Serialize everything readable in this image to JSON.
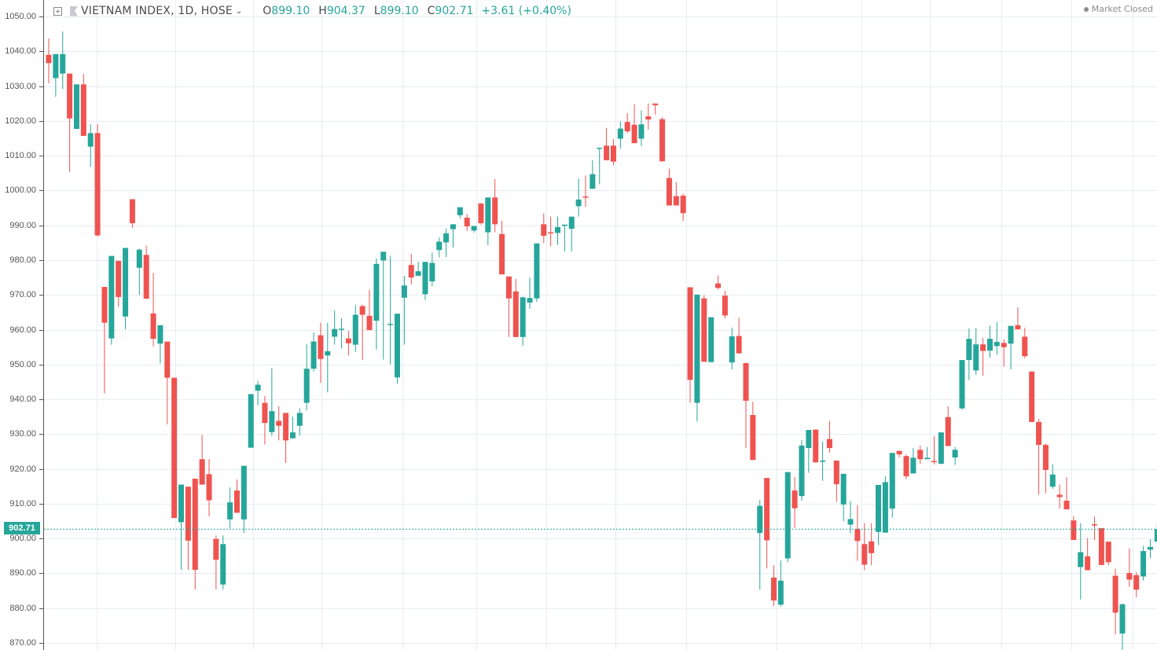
{
  "header": {
    "symbol": "VIETNAM INDEX, 1D, HOSE",
    "open_label": "O",
    "open": "899.10",
    "high_label": "H",
    "high": "904.37",
    "low_label": "L",
    "low": "899.10",
    "close_label": "C",
    "close": "902.71",
    "change": "+3.61 (+0.40%)"
  },
  "status": {
    "text": "Market Closed"
  },
  "last_price_tag": "902.71",
  "colors": {
    "up": "#26a69a",
    "down": "#ef5350",
    "grid": "#e6edf3",
    "axis": "#555555",
    "last_price_line": "#26a69a"
  },
  "chart_data": {
    "type": "candlestick",
    "title": "VIETNAM INDEX, 1D, HOSE",
    "xlabel": "",
    "ylabel": "",
    "ylim": [
      868,
      1052
    ],
    "yticks": [
      "1050.00",
      "1040.00",
      "1030.00",
      "1020.00",
      "1010.00",
      "1000.00",
      "990.00",
      "980.00",
      "970.00",
      "960.00",
      "950.00",
      "940.00",
      "930.00",
      "920.00",
      "910.00",
      "900.00",
      "890.00",
      "880.00",
      "870.00"
    ],
    "grid": true,
    "last_price": 902.71,
    "candles": [
      {
        "o": 1039.0,
        "h": 1043.7,
        "l": 1030.8,
        "c": 1036.6
      },
      {
        "o": 1032.3,
        "h": 1039.2,
        "l": 1026.9,
        "c": 1039.2
      },
      {
        "o": 1033.6,
        "h": 1045.7,
        "l": 1029.2,
        "c": 1039.2
      },
      {
        "o": 1033.6,
        "h": 1033.6,
        "l": 1005.3,
        "c": 1020.7
      },
      {
        "o": 1017.7,
        "h": 1030.5,
        "l": 1017.7,
        "c": 1030.5
      },
      {
        "o": 1030.5,
        "h": 1033.5,
        "l": 1015.7,
        "c": 1015.7
      },
      {
        "o": 1012.6,
        "h": 1019.0,
        "l": 1006.8,
        "c": 1016.5
      },
      {
        "o": 1016.5,
        "h": 1019.0,
        "l": 986.8,
        "c": 987.1
      },
      {
        "o": 972.3,
        "h": 972.3,
        "l": 941.7,
        "c": 962.0
      },
      {
        "o": 957.5,
        "h": 981.2,
        "l": 955.7,
        "c": 981.2
      },
      {
        "o": 979.8,
        "h": 979.8,
        "l": 966.6,
        "c": 969.4
      },
      {
        "o": 963.8,
        "h": 983.5,
        "l": 960.1,
        "c": 983.5
      },
      {
        "o": 997.5,
        "h": 997.5,
        "l": 989.3,
        "c": 990.6
      },
      {
        "o": 977.8,
        "h": 983.3,
        "l": 970.0,
        "c": 983.0
      },
      {
        "o": 981.5,
        "h": 984.2,
        "l": 968.9,
        "c": 968.9
      },
      {
        "o": 964.7,
        "h": 976.3,
        "l": 955.2,
        "c": 957.4
      },
      {
        "o": 956.0,
        "h": 961.3,
        "l": 950.3,
        "c": 961.3
      },
      {
        "o": 956.6,
        "h": 956.6,
        "l": 932.8,
        "c": 946.2
      },
      {
        "o": 946.2,
        "h": 946.2,
        "l": 906.0,
        "c": 905.9
      },
      {
        "o": 904.7,
        "h": 915.5,
        "l": 891.0,
        "c": 915.5
      },
      {
        "o": 914.9,
        "h": 914.9,
        "l": 891.0,
        "c": 899.4
      },
      {
        "o": 917.2,
        "h": 917.2,
        "l": 885.4,
        "c": 891.0
      },
      {
        "o": 922.8,
        "h": 929.8,
        "l": 916.3,
        "c": 915.5
      },
      {
        "o": 918.5,
        "h": 922.8,
        "l": 906.4,
        "c": 911.0
      },
      {
        "o": 899.9,
        "h": 900.9,
        "l": 885.4,
        "c": 893.9
      },
      {
        "o": 886.8,
        "h": 900.9,
        "l": 885.4,
        "c": 898.4
      },
      {
        "o": 905.5,
        "h": 914.7,
        "l": 902.9,
        "c": 910.4
      },
      {
        "o": 913.8,
        "h": 917.0,
        "l": 908.9,
        "c": 907.4
      },
      {
        "o": 905.5,
        "h": 905.5,
        "l": 901.6,
        "c": 920.9
      },
      {
        "o": 926.1,
        "h": 941.5,
        "l": 926.1,
        "c": 941.5
      },
      {
        "o": 942.5,
        "h": 945.3,
        "l": 938.3,
        "c": 944.2
      },
      {
        "o": 939.0,
        "h": 941.0,
        "l": 927.0,
        "c": 933.2
      },
      {
        "o": 930.6,
        "h": 949.0,
        "l": 929.5,
        "c": 936.6
      },
      {
        "o": 933.8,
        "h": 938.0,
        "l": 928.2,
        "c": 932.4
      },
      {
        "o": 936.1,
        "h": 936.1,
        "l": 921.7,
        "c": 928.2
      },
      {
        "o": 928.8,
        "h": 935.0,
        "l": 929.2,
        "c": 930.5
      },
      {
        "o": 932.4,
        "h": 937.4,
        "l": 929.6,
        "c": 936.1
      },
      {
        "o": 939.0,
        "h": 955.8,
        "l": 936.8,
        "c": 948.8
      },
      {
        "o": 948.8,
        "h": 959.2,
        "l": 948.0,
        "c": 956.6
      },
      {
        "o": 958.4,
        "h": 962.0,
        "l": 944.7,
        "c": 951.6
      },
      {
        "o": 952.6,
        "h": 962.0,
        "l": 942.0,
        "c": 953.8
      },
      {
        "o": 958.0,
        "h": 965.5,
        "l": 955.7,
        "c": 960.2
      },
      {
        "o": 960.2,
        "h": 963.3,
        "l": 954.6,
        "c": 960.3
      },
      {
        "o": 957.5,
        "h": 959.6,
        "l": 952.6,
        "c": 956.1
      },
      {
        "o": 955.7,
        "h": 967.2,
        "l": 953.6,
        "c": 964.3
      },
      {
        "o": 966.8,
        "h": 967.2,
        "l": 951.3,
        "c": 964.3
      },
      {
        "o": 964.0,
        "h": 971.5,
        "l": 964.0,
        "c": 959.9
      },
      {
        "o": 962.6,
        "h": 980.5,
        "l": 954.3,
        "c": 978.9
      },
      {
        "o": 979.9,
        "h": 980.8,
        "l": 951.4,
        "c": 982.4
      },
      {
        "o": 961.7,
        "h": 981.2,
        "l": 950.0,
        "c": 961.7
      },
      {
        "o": 946.3,
        "h": 964.6,
        "l": 944.5,
        "c": 964.6
      },
      {
        "o": 969.2,
        "h": 975.5,
        "l": 955.7,
        "c": 972.7
      },
      {
        "o": 978.6,
        "h": 981.8,
        "l": 973.0,
        "c": 975.0
      },
      {
        "o": 975.5,
        "h": 979.5,
        "l": 975.5,
        "c": 976.8
      },
      {
        "o": 970.2,
        "h": 970.2,
        "l": 968.6,
        "c": 979.5
      },
      {
        "o": 973.9,
        "h": 982.2,
        "l": 972.5,
        "c": 979.2
      },
      {
        "o": 982.9,
        "h": 986.5,
        "l": 980.8,
        "c": 985.3
      },
      {
        "o": 985.1,
        "h": 989.1,
        "l": 980.9,
        "c": 987.7
      },
      {
        "o": 988.9,
        "h": 990.3,
        "l": 983.6,
        "c": 990.3
      },
      {
        "o": 992.9,
        "h": 994.8,
        "l": 992.0,
        "c": 995.2
      },
      {
        "o": 992.2,
        "h": 993.2,
        "l": 988.4,
        "c": 989.7
      },
      {
        "o": 988.5,
        "h": 988.5,
        "l": 987.9,
        "c": 989.8
      },
      {
        "o": 996.3,
        "h": 996.3,
        "l": 990.2,
        "c": 990.6
      },
      {
        "o": 988.0,
        "h": 996.1,
        "l": 984.3,
        "c": 998.0
      },
      {
        "o": 998.0,
        "h": 1003.3,
        "l": 988.0,
        "c": 990.3
      },
      {
        "o": 987.5,
        "h": 991.3,
        "l": 975.9,
        "c": 975.9
      },
      {
        "o": 975.3,
        "h": 969.0,
        "l": 957.9,
        "c": 969.0
      },
      {
        "o": 971.0,
        "h": 974.6,
        "l": 958.0,
        "c": 957.9
      },
      {
        "o": 957.9,
        "h": 969.5,
        "l": 955.4,
        "c": 969.3
      },
      {
        "o": 967.8,
        "h": 975.0,
        "l": 966.0,
        "c": 969.1
      },
      {
        "o": 969.0,
        "h": 969.0,
        "l": 968.0,
        "c": 984.8
      },
      {
        "o": 990.3,
        "h": 993.5,
        "l": 984.9,
        "c": 987.0
      },
      {
        "o": 988.0,
        "h": 992.5,
        "l": 984.0,
        "c": 987.9
      },
      {
        "o": 987.8,
        "h": 992.5,
        "l": 984.4,
        "c": 989.5
      },
      {
        "o": 990.2,
        "h": 990.2,
        "l": 982.5,
        "c": 990.2
      },
      {
        "o": 989.0,
        "h": 987.8,
        "l": 982.5,
        "c": 992.5
      },
      {
        "o": 995.5,
        "h": 1003.4,
        "l": 992.5,
        "c": 997.4
      },
      {
        "o": 998.3,
        "h": 1004.3,
        "l": 995.3,
        "c": 998.2
      },
      {
        "o": 1000.5,
        "h": 1008.7,
        "l": 1000.5,
        "c": 1004.7
      },
      {
        "o": 1012.0,
        "h": 1012.3,
        "l": 1001.8,
        "c": 1012.3
      },
      {
        "o": 1012.9,
        "h": 1018.0,
        "l": 1011.0,
        "c": 1008.7
      },
      {
        "o": 1012.9,
        "h": 1014.8,
        "l": 1007.2,
        "c": 1008.3
      },
      {
        "o": 1014.9,
        "h": 1019.8,
        "l": 1012.0,
        "c": 1017.8
      },
      {
        "o": 1019.7,
        "h": 1022.3,
        "l": 1016.5,
        "c": 1017.0
      },
      {
        "o": 1018.9,
        "h": 1024.8,
        "l": 1013.6,
        "c": 1013.6
      },
      {
        "o": 1014.9,
        "h": 1023.0,
        "l": 1012.8,
        "c": 1019.0
      },
      {
        "o": 1021.3,
        "h": 1025.0,
        "l": 1017.5,
        "c": 1020.4
      },
      {
        "o": 1025.0,
        "h": 1025.0,
        "l": 1021.8,
        "c": 1024.5
      },
      {
        "o": 1020.5,
        "h": 1021.1,
        "l": 1008.3,
        "c": 1008.4
      },
      {
        "o": 1003.6,
        "h": 1006.3,
        "l": 995.7,
        "c": 995.7
      },
      {
        "o": 998.4,
        "h": 1002.4,
        "l": 995.7,
        "c": 995.7
      },
      {
        "o": 998.5,
        "h": 999.1,
        "l": 991.2,
        "c": 993.5
      },
      {
        "o": 972.2,
        "h": 972.2,
        "l": 939.0,
        "c": 945.6
      },
      {
        "o": 939.0,
        "h": 970.1,
        "l": 933.6,
        "c": 970.1
      },
      {
        "o": 969.0,
        "h": 969.9,
        "l": 950.8,
        "c": 950.8
      },
      {
        "o": 950.7,
        "h": 963.6,
        "l": 950.7,
        "c": 963.6
      },
      {
        "o": 973.3,
        "h": 975.6,
        "l": 971.6,
        "c": 972.0
      },
      {
        "o": 969.8,
        "h": 971.2,
        "l": 963.2,
        "c": 964.1
      },
      {
        "o": 950.6,
        "h": 960.6,
        "l": 948.6,
        "c": 958.1
      },
      {
        "o": 958.2,
        "h": 963.5,
        "l": 953.2,
        "c": 953.2
      },
      {
        "o": 950.4,
        "h": 950.5,
        "l": 926.0,
        "c": 939.6
      },
      {
        "o": 935.5,
        "h": 939.3,
        "l": 922.5,
        "c": 922.6
      },
      {
        "o": 901.6,
        "h": 911.1,
        "l": 885.3,
        "c": 909.4
      },
      {
        "o": 917.4,
        "h": 917.4,
        "l": 891.4,
        "c": 899.5
      },
      {
        "o": 888.8,
        "h": 892.3,
        "l": 880.6,
        "c": 882.2
      },
      {
        "o": 881.0,
        "h": 893.7,
        "l": 880.5,
        "c": 887.9
      },
      {
        "o": 894.3,
        "h": 916.6,
        "l": 893.2,
        "c": 919.1
      },
      {
        "o": 913.8,
        "h": 917.7,
        "l": 903.0,
        "c": 908.7
      },
      {
        "o": 912.2,
        "h": 928.3,
        "l": 910.9,
        "c": 926.7
      },
      {
        "o": 926.0,
        "h": 927.5,
        "l": 918.9,
        "c": 931.2
      },
      {
        "o": 931.3,
        "h": 931.3,
        "l": 921.8,
        "c": 921.9
      },
      {
        "o": 922.4,
        "h": 927.8,
        "l": 916.6,
        "c": 922.4
      },
      {
        "o": 928.6,
        "h": 933.8,
        "l": 924.7,
        "c": 926.0
      },
      {
        "o": 922.4,
        "h": 920.7,
        "l": 910.5,
        "c": 915.6
      },
      {
        "o": 909.8,
        "h": 917.0,
        "l": 905.0,
        "c": 918.6
      },
      {
        "o": 904.0,
        "h": 910.8,
        "l": 901.5,
        "c": 905.6
      },
      {
        "o": 902.8,
        "h": 909.6,
        "l": 893.6,
        "c": 899.3
      },
      {
        "o": 898.4,
        "h": 904.5,
        "l": 890.9,
        "c": 892.5
      },
      {
        "o": 899.2,
        "h": 904.4,
        "l": 892.3,
        "c": 895.8
      },
      {
        "o": 901.9,
        "h": 902.1,
        "l": 898.1,
        "c": 915.4
      },
      {
        "o": 901.7,
        "h": 917.9,
        "l": 902.6,
        "c": 916.2
      },
      {
        "o": 908.6,
        "h": 924.0,
        "l": 906.0,
        "c": 924.6
      },
      {
        "o": 925.2,
        "h": 925.2,
        "l": 923.3,
        "c": 924.2
      },
      {
        "o": 923.7,
        "h": 924.1,
        "l": 917.1,
        "c": 917.9
      },
      {
        "o": 918.7,
        "h": 926.0,
        "l": 919.7,
        "c": 923.2
      },
      {
        "o": 925.5,
        "h": 926.7,
        "l": 921.5,
        "c": 922.8
      },
      {
        "o": 922.8,
        "h": 926.3,
        "l": 923.0,
        "c": 923.2
      },
      {
        "o": 922.3,
        "h": 929.4,
        "l": 921.3,
        "c": 922.2
      },
      {
        "o": 921.5,
        "h": 930.2,
        "l": 921.3,
        "c": 930.5
      },
      {
        "o": 934.9,
        "h": 938.0,
        "l": 929.2,
        "c": 926.6
      },
      {
        "o": 923.3,
        "h": 926.3,
        "l": 921.2,
        "c": 925.5
      },
      {
        "o": 937.4,
        "h": 937.4,
        "l": 937.0,
        "c": 951.3
      },
      {
        "o": 951.3,
        "h": 960.4,
        "l": 945.5,
        "c": 957.4
      },
      {
        "o": 948.3,
        "h": 960.5,
        "l": 947.0,
        "c": 955.8
      },
      {
        "o": 955.8,
        "h": 957.6,
        "l": 946.7,
        "c": 953.9
      },
      {
        "o": 954.0,
        "h": 961.2,
        "l": 952.0,
        "c": 957.4
      },
      {
        "o": 955.3,
        "h": 962.2,
        "l": 952.8,
        "c": 956.5
      },
      {
        "o": 956.2,
        "h": 957.3,
        "l": 949.4,
        "c": 955.0
      },
      {
        "o": 956.0,
        "h": 960.4,
        "l": 948.6,
        "c": 961.1
      },
      {
        "o": 961.3,
        "h": 966.5,
        "l": 960.2,
        "c": 960.1
      },
      {
        "o": 958.0,
        "h": 960.6,
        "l": 951.8,
        "c": 952.4
      },
      {
        "o": 948.0,
        "h": 948.0,
        "l": 933.5,
        "c": 933.5
      },
      {
        "o": 933.5,
        "h": 934.4,
        "l": 912.6,
        "c": 926.9
      },
      {
        "o": 926.9,
        "h": 927.3,
        "l": 913.0,
        "c": 919.7
      },
      {
        "o": 914.9,
        "h": 921.4,
        "l": 914.3,
        "c": 918.4
      },
      {
        "o": 912.6,
        "h": 915.5,
        "l": 908.6,
        "c": 911.9
      },
      {
        "o": 910.9,
        "h": 917.6,
        "l": 908.6,
        "c": 908.4
      },
      {
        "o": 905.2,
        "h": 906.4,
        "l": 899.9,
        "c": 899.6
      },
      {
        "o": 891.8,
        "h": 904.4,
        "l": 882.5,
        "c": 896.1
      },
      {
        "o": 894.9,
        "h": 900.1,
        "l": 891.0,
        "c": 890.9
      },
      {
        "o": 904.1,
        "h": 906.3,
        "l": 899.6,
        "c": 903.9
      },
      {
        "o": 903.0,
        "h": 903.0,
        "l": 895.3,
        "c": 892.4
      },
      {
        "o": 899.1,
        "h": 899.1,
        "l": 892.3,
        "c": 893.2
      },
      {
        "o": 889.3,
        "h": 891.3,
        "l": 872.5,
        "c": 878.7
      },
      {
        "o": 872.7,
        "h": 881.4,
        "l": 867.5,
        "c": 881.1
      },
      {
        "o": 890.1,
        "h": 897.2,
        "l": 886.1,
        "c": 888.2
      },
      {
        "o": 889.5,
        "h": 890.3,
        "l": 883.1,
        "c": 885.3
      },
      {
        "o": 889.1,
        "h": 897.9,
        "l": 887.9,
        "c": 896.4
      },
      {
        "o": 896.8,
        "h": 899.8,
        "l": 894.4,
        "c": 897.6
      },
      {
        "o": 899.1,
        "h": 904.4,
        "l": 899.1,
        "c": 902.7
      }
    ]
  }
}
